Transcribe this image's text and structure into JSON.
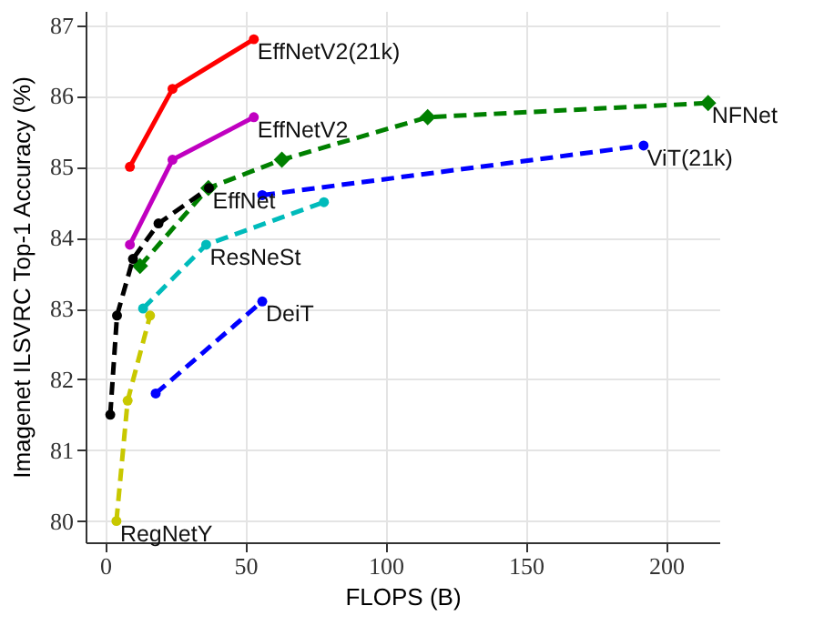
{
  "chart_data": {
    "type": "line",
    "xlabel": "FLOPS (B)",
    "ylabel": "Imagenet ILSVRC Top-1 Accuracy (%)",
    "xlim": [
      -7,
      219
    ],
    "xticks": [
      0,
      50,
      100,
      150,
      200
    ],
    "ylim": [
      79.7,
      87.2
    ],
    "yticks": [
      80,
      81,
      82,
      83,
      84,
      85,
      86,
      87
    ],
    "grid": true,
    "marker": "circle",
    "series": [
      {
        "color": "#ff0000",
        "line_style": "solid",
        "x": [
          8.8,
          24,
          53
        ],
        "values": [
          85.0,
          86.1,
          86.8
        ]
      },
      {
        "color": "#c000c0",
        "line_style": "solid",
        "x": [
          8.8,
          24,
          53
        ],
        "values": [
          83.9,
          85.1,
          85.7
        ]
      },
      {
        "color": "#008000",
        "line_style": "dashed",
        "marker": "diamond",
        "x": [
          12.4,
          36.8,
          63,
          115,
          215
        ],
        "values": [
          83.6,
          84.7,
          85.1,
          85.7,
          85.9
        ]
      },
      {
        "color": "#000000",
        "line_style": "dashed",
        "x": [
          1.8,
          4.2,
          9.9,
          19,
          37
        ],
        "values": [
          81.5,
          82.9,
          83.7,
          84.2,
          84.7
        ]
      },
      {
        "color": "#00bbbb",
        "line_style": "dashed",
        "x": [
          13.5,
          36,
          78
        ],
        "values": [
          83.0,
          83.9,
          84.5
        ]
      },
      {
        "color": "#0000ff",
        "line_style": "dashed",
        "x": [
          56,
          192
        ],
        "values": [
          84.6,
          85.3
        ]
      },
      {
        "color": "#0000ff",
        "line_style": "dashed",
        "x": [
          18,
          56
        ],
        "values": [
          81.8,
          83.1
        ]
      },
      {
        "color": "#c8c800",
        "line_style": "dashed",
        "x": [
          4,
          8,
          16
        ],
        "values": [
          80.0,
          81.7,
          82.9
        ]
      }
    ],
    "annotations": [
      {
        "text": "EffNetV2(21k)",
        "x": 53,
        "y": 86.8
      },
      {
        "text": "EffNetV2",
        "x": 53,
        "y": 85.7
      },
      {
        "text": "NFNet",
        "x": 215,
        "y": 85.9
      },
      {
        "text": "EffNet",
        "x": 37,
        "y": 84.7
      },
      {
        "text": "ResNeSt",
        "x": 36,
        "y": 83.9
      },
      {
        "text": "ViT(21k)",
        "x": 192,
        "y": 85.3
      },
      {
        "text": "DeiT",
        "x": 56,
        "y": 83.1
      },
      {
        "text": "RegNetY",
        "x": 4,
        "y": 80.0
      }
    ]
  }
}
